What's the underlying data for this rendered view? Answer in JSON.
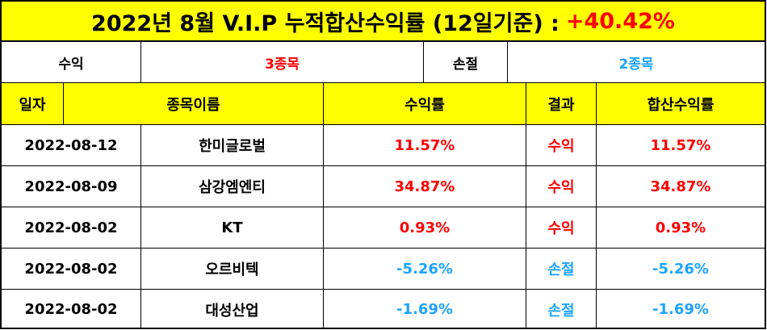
{
  "title": {
    "text": "2022년 8월 V.I.P 누적합산수익률 (12일기준) :",
    "highlight": "+40.42%"
  },
  "summary": {
    "gain_label": "수익",
    "gain_count": "3종목",
    "loss_label": "손절",
    "loss_count": "2종목"
  },
  "header": {
    "date": "일자",
    "name": "종목이름",
    "return": "수익률",
    "result": "결과",
    "cumulative": "합산수익률"
  },
  "rows": [
    {
      "date": "2022-08-12",
      "name": "한미글로벌",
      "return": "11.57%",
      "result": "수익",
      "cumulative": "11.57%"
    },
    {
      "date": "2022-08-09",
      "name": "삼강엠엔티",
      "return": "34.87%",
      "result": "수익",
      "cumulative": "34.87%"
    },
    {
      "date": "2022-08-02",
      "name": "KT",
      "return": "0.93%",
      "result": "수익",
      "cumulative": "0.93%"
    },
    {
      "date": "2022-08-02",
      "name": "오르비텍",
      "return": "-5.26%",
      "result": "손절",
      "cumulative": "-5.26%"
    },
    {
      "date": "2022-08-02",
      "name": "대성산업",
      "return": "-1.69%",
      "result": "손절",
      "cumulative": "-1.69%"
    }
  ],
  "colors": {
    "yellow": "#ffff00",
    "gain": "#ff0000",
    "loss": "#1ca4ff"
  }
}
